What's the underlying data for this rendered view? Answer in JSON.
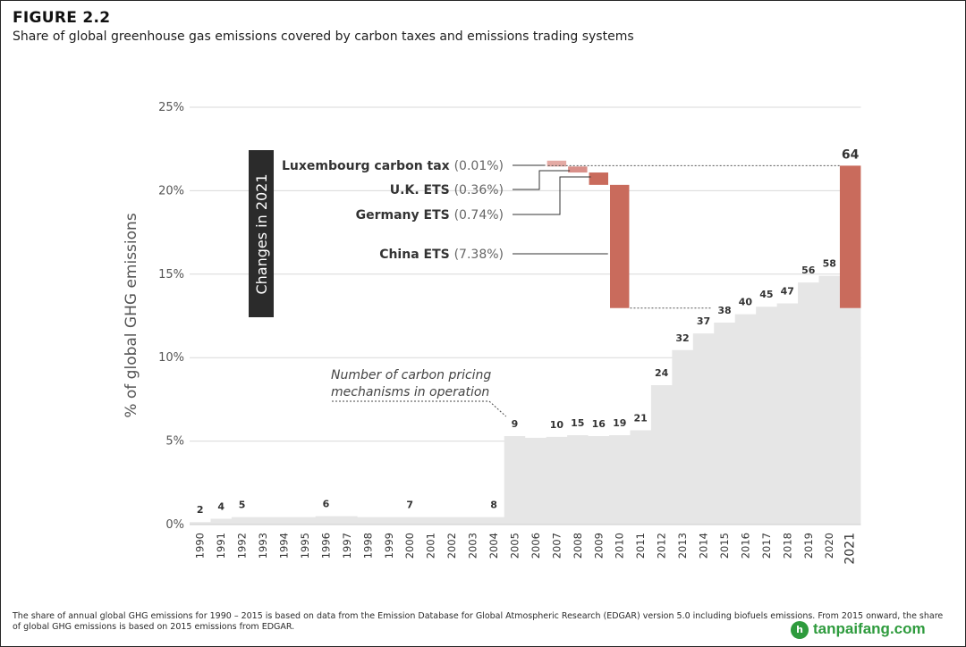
{
  "figure": {
    "label": "FIGURE 2.2",
    "title": "Share of global greenhouse gas emissions covered by carbon taxes and emissions trading systems"
  },
  "footnote": "The share of annual global GHG emissions for 1990 – 2015 is based on data from the Emission Database for Global Atmospheric Research (EDGAR) version 5.0 including biofuels emissions. From 2015 onward, the share of global GHG emissions is based on 2015 emissions from EDGAR.",
  "brand": {
    "text": "tanpaifang.com",
    "icon": "h",
    "color": "#2e9b3d"
  },
  "chart_data": {
    "type": "area",
    "ylabel": "% of global GHG emissions",
    "ylim": [
      0,
      25
    ],
    "yticks": [
      0,
      5,
      10,
      15,
      20,
      25
    ],
    "ytick_labels": [
      "0%",
      "5%",
      "10%",
      "15%",
      "20%",
      "25%"
    ],
    "grid": true,
    "years": [
      "1990",
      "1991",
      "1992",
      "1993",
      "1994",
      "1995",
      "1996",
      "1997",
      "1998",
      "1999",
      "2000",
      "2001",
      "2002",
      "2003",
      "2004",
      "2005",
      "2006",
      "2007",
      "2008",
      "2009",
      "2010",
      "2011",
      "2012",
      "2013",
      "2014",
      "2015",
      "2016",
      "2017",
      "2018",
      "2019",
      "2020",
      "2021"
    ],
    "share": [
      0.15,
      0.35,
      0.45,
      0.45,
      0.45,
      0.45,
      0.5,
      0.5,
      0.45,
      0.45,
      0.45,
      0.45,
      0.45,
      0.45,
      0.45,
      5.3,
      5.2,
      5.25,
      5.35,
      5.3,
      5.35,
      5.65,
      8.35,
      10.45,
      11.45,
      12.1,
      12.6,
      13.05,
      13.25,
      14.5,
      14.9,
      21.5
    ],
    "mechanism_labels": [
      {
        "year": "1990",
        "count": "2"
      },
      {
        "year": "1991",
        "count": "4"
      },
      {
        "year": "1992",
        "count": "5"
      },
      {
        "year": "1996",
        "count": "6"
      },
      {
        "year": "2000",
        "count": "7"
      },
      {
        "year": "2004",
        "count": "8"
      },
      {
        "year": "2005",
        "count": "9"
      },
      {
        "year": "2007",
        "count": "10"
      },
      {
        "year": "2008",
        "count": "15"
      },
      {
        "year": "2009",
        "count": "16"
      },
      {
        "year": "2010",
        "count": "19"
      },
      {
        "year": "2011",
        "count": "21"
      },
      {
        "year": "2012",
        "count": "24"
      },
      {
        "year": "2013",
        "count": "32"
      },
      {
        "year": "2014",
        "count": "37"
      },
      {
        "year": "2015",
        "count": "38"
      },
      {
        "year": "2016",
        "count": "40"
      },
      {
        "year": "2017",
        "count": "45"
      },
      {
        "year": "2018",
        "count": "47"
      },
      {
        "year": "2019",
        "count": "56"
      },
      {
        "year": "2020",
        "count": "58"
      },
      {
        "year": "2021",
        "count": "64"
      }
    ],
    "annotation": [
      "Number of carbon pricing",
      "mechanisms in operation"
    ],
    "changes_label": "Changes in 2021",
    "changes_2021": {
      "base": 12.97,
      "items": [
        {
          "name": "China ETS",
          "value_text": "(7.38%)",
          "delta": 7.38,
          "color": "#c96b5c"
        },
        {
          "name": "Germany ETS",
          "value_text": "(0.74%)",
          "delta": 0.74,
          "color": "#c96b5c"
        },
        {
          "name": "U.K. ETS",
          "value_text": "(0.36%)",
          "delta": 0.36,
          "color": "#d9908a"
        },
        {
          "name": "Luxembourg carbon tax",
          "value_text": "(0.01%)",
          "delta": 0.01,
          "color": "#e4aaa4"
        }
      ]
    },
    "colors": {
      "area": "#e6e6e6",
      "grid": "#d9d9d9",
      "increment": "#c96b5c",
      "changes_box": "#2b2b2b"
    }
  }
}
